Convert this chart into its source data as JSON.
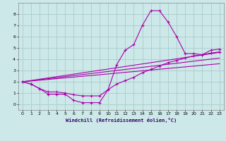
{
  "background_color": "#cce8e8",
  "grid_color": "#aacccc",
  "line_color": "#aa00aa",
  "xlabel": "Windchill (Refroidissement éolien,°C)",
  "xlim": [
    -0.5,
    23.5
  ],
  "ylim": [
    -0.5,
    9.0
  ],
  "xticks": [
    0,
    1,
    2,
    3,
    4,
    5,
    6,
    7,
    8,
    9,
    10,
    11,
    12,
    13,
    14,
    15,
    16,
    17,
    18,
    19,
    20,
    21,
    22,
    23
  ],
  "yticks": [
    0,
    1,
    2,
    3,
    4,
    5,
    6,
    7,
    8
  ],
  "series1_x": [
    0,
    1,
    2,
    3,
    4,
    5,
    6,
    7,
    8,
    9,
    10,
    11,
    12,
    13,
    14,
    15,
    16,
    17,
    18,
    19,
    20,
    21,
    22,
    23
  ],
  "series1_y": [
    2.0,
    1.8,
    1.4,
    0.9,
    0.9,
    0.9,
    0.35,
    0.15,
    0.15,
    0.15,
    1.3,
    3.5,
    4.8,
    5.3,
    7.0,
    8.3,
    8.3,
    7.3,
    6.0,
    4.5,
    4.5,
    4.4,
    4.8,
    4.9
  ],
  "series2_x": [
    0,
    1,
    2,
    3,
    4,
    5,
    6,
    7,
    8,
    9,
    10,
    11,
    12,
    13,
    14,
    15,
    16,
    17,
    18,
    19,
    20,
    21,
    22,
    23
  ],
  "series2_y": [
    2.0,
    1.8,
    1.4,
    1.1,
    1.1,
    1.0,
    0.85,
    0.75,
    0.75,
    0.75,
    1.3,
    1.8,
    2.1,
    2.4,
    2.8,
    3.1,
    3.4,
    3.7,
    3.9,
    4.1,
    4.3,
    4.4,
    4.55,
    4.65
  ],
  "line3_x": [
    0,
    23
  ],
  "line3_y": [
    2.0,
    4.6
  ],
  "line4_x": [
    0,
    23
  ],
  "line4_y": [
    2.0,
    4.1
  ],
  "line5_x": [
    0,
    23
  ],
  "line5_y": [
    2.0,
    3.6
  ]
}
